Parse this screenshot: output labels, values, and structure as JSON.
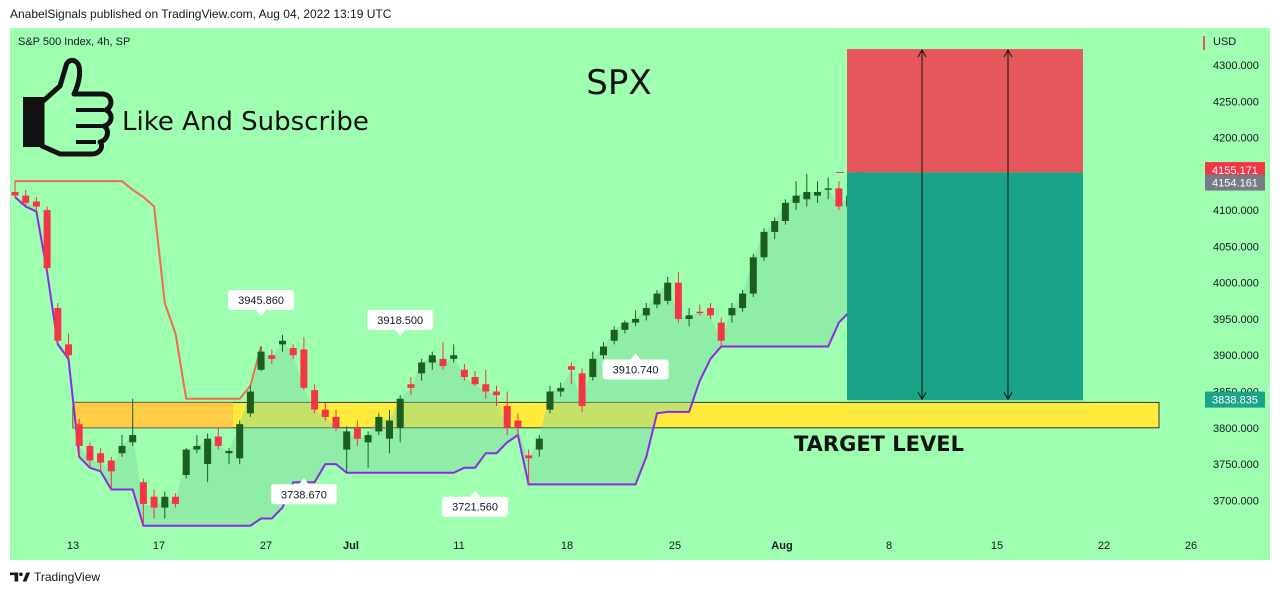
{
  "header": {
    "published_line": "AnabelSignals published on TradingView.com, Aug 04, 2022 13:19 UTC"
  },
  "chart_header": {
    "symbol_line": "S&P 500 Index, 4h, SP",
    "currency": "USD"
  },
  "overlay": {
    "title": "SPX",
    "cta_text": "Like And Subscribe",
    "target_label": "TARGET LEVEL"
  },
  "footer": {
    "brand": "TradingView"
  },
  "colors": {
    "background": "#9effb0",
    "bull_candle": "#1b5e20",
    "bear_candle": "#f23645",
    "target_zone": "#ffeb3b",
    "stop_zone": "#e5575a",
    "profit_zone": "#1aa386",
    "upper_band": "#f06a50",
    "lower_band": "#8a2be2"
  },
  "chart_data": {
    "type": "candlestick",
    "ylim": [
      3655,
      4340
    ],
    "y_ticks": [
      "4300.000",
      "4250.000",
      "4200.000",
      "4150.000",
      "4100.000",
      "4050.000",
      "4000.000",
      "3950.000",
      "3900.000",
      "3850.000",
      "3800.000",
      "3750.000",
      "3700.000"
    ],
    "y_tick_values": [
      4300,
      4250,
      4200,
      4150,
      4100,
      4050,
      4000,
      3950,
      3900,
      3850,
      3800,
      3750,
      3700
    ],
    "x_ticks": [
      "13",
      "17",
      "27",
      "Jul",
      "11",
      "18",
      "25",
      "Aug",
      "8",
      "15",
      "22",
      "26"
    ],
    "price_tags": [
      {
        "label": "4155.171",
        "value": 4155.171,
        "color": "#f23645"
      },
      {
        "label": "4154.161",
        "value": 4138,
        "color": "#787b86"
      },
      {
        "label": "3838.835",
        "value": 3838.835,
        "color": "#1aa386"
      }
    ],
    "annotations": [
      {
        "label": "3945.860",
        "value": 3945.86,
        "index": 23,
        "position": "above"
      },
      {
        "label": "3918.500",
        "value": 3918.5,
        "index": 36,
        "position": "above"
      },
      {
        "label": "3910.740",
        "value": 3910.74,
        "index": 58,
        "position": "below"
      },
      {
        "label": "3738.670",
        "value": 3738.67,
        "index": 27,
        "position": "below"
      },
      {
        "label": "3721.560",
        "value": 3721.56,
        "index": 43,
        "position": "below"
      }
    ],
    "target_zone": {
      "low": 3800,
      "high": 3835
    },
    "position_box": {
      "entry": 4152,
      "stop": 4322,
      "target": 3838
    },
    "candles": [
      [
        4125,
        4140,
        4118,
        4120
      ],
      [
        4120,
        4128,
        4105,
        4110
      ],
      [
        4112,
        4118,
        4098,
        4105
      ],
      [
        4100,
        4105,
        4015,
        4020
      ],
      [
        3965,
        3972,
        3915,
        3920
      ],
      [
        3915,
        3930,
        3895,
        3900
      ],
      [
        3805,
        3812,
        3760,
        3775
      ],
      [
        3775,
        3780,
        3745,
        3755
      ],
      [
        3765,
        3772,
        3740,
        3752
      ],
      [
        3755,
        3760,
        3715,
        3740
      ],
      [
        3765,
        3790,
        3760,
        3775
      ],
      [
        3780,
        3840,
        3775,
        3790
      ],
      [
        3725,
        3730,
        3665,
        3695
      ],
      [
        3705,
        3715,
        3675,
        3690
      ],
      [
        3690,
        3712,
        3675,
        3705
      ],
      [
        3705,
        3710,
        3690,
        3695
      ],
      [
        3735,
        3772,
        3730,
        3770
      ],
      [
        3770,
        3790,
        3765,
        3775
      ],
      [
        3750,
        3792,
        3725,
        3785
      ],
      [
        3788,
        3800,
        3770,
        3775
      ],
      [
        3765,
        3772,
        3750,
        3768
      ],
      [
        3758,
        3810,
        3750,
        3805
      ],
      [
        3820,
        3858,
        3815,
        3850
      ],
      [
        3880,
        3912,
        3878,
        3905
      ],
      [
        3900,
        3908,
        3888,
        3895
      ],
      [
        3915,
        3928,
        3905,
        3920
      ],
      [
        3910,
        3915,
        3895,
        3900
      ],
      [
        3908,
        3925,
        3852,
        3855
      ],
      [
        3852,
        3860,
        3820,
        3825
      ],
      [
        3825,
        3835,
        3810,
        3815
      ],
      [
        3815,
        3825,
        3795,
        3800
      ],
      [
        3770,
        3802,
        3738,
        3795
      ],
      [
        3800,
        3810,
        3775,
        3785
      ],
      [
        3780,
        3795,
        3745,
        3790
      ],
      [
        3795,
        3820,
        3790,
        3815
      ],
      [
        3785,
        3825,
        3765,
        3810
      ],
      [
        3800,
        3845,
        3780,
        3840
      ],
      [
        3860,
        3870,
        3845,
        3855
      ],
      [
        3875,
        3895,
        3865,
        3890
      ],
      [
        3890,
        3905,
        3880,
        3900
      ],
      [
        3895,
        3918,
        3880,
        3885
      ],
      [
        3895,
        3915,
        3890,
        3900
      ],
      [
        3880,
        3888,
        3865,
        3870
      ],
      [
        3870,
        3878,
        3858,
        3860
      ],
      [
        3860,
        3880,
        3840,
        3850
      ],
      [
        3850,
        3858,
        3830,
        3845
      ],
      [
        3830,
        3850,
        3790,
        3800
      ],
      [
        3810,
        3820,
        3790,
        3800
      ],
      [
        3762,
        3770,
        3722,
        3758
      ],
      [
        3770,
        3790,
        3760,
        3785
      ],
      [
        3825,
        3858,
        3820,
        3850
      ],
      [
        3850,
        3862,
        3843,
        3855
      ],
      [
        3885,
        3890,
        3860,
        3880
      ],
      [
        3875,
        3882,
        3822,
        3830
      ],
      [
        3870,
        3905,
        3865,
        3895
      ],
      [
        3900,
        3918,
        3895,
        3912
      ],
      [
        3920,
        3940,
        3915,
        3935
      ],
      [
        3935,
        3948,
        3930,
        3945
      ],
      [
        3945,
        3962,
        3940,
        3950
      ],
      [
        3955,
        3972,
        3948,
        3965
      ],
      [
        3970,
        3990,
        3965,
        3985
      ],
      [
        3975,
        4008,
        3970,
        4000
      ],
      [
        4000,
        4015,
        3945,
        3950
      ],
      [
        3950,
        3965,
        3940,
        3955
      ],
      [
        3960,
        3970,
        3955,
        3958
      ],
      [
        3965,
        3972,
        3950,
        3955
      ],
      [
        3945,
        3952,
        3912,
        3920
      ],
      [
        3955,
        3972,
        3945,
        3965
      ],
      [
        3965,
        3990,
        3960,
        3985
      ],
      [
        3985,
        4040,
        3980,
        4035
      ],
      [
        4035,
        4075,
        4030,
        4070
      ],
      [
        4070,
        4090,
        4060,
        4085
      ],
      [
        4085,
        4115,
        4080,
        4110
      ],
      [
        4110,
        4140,
        4100,
        4120
      ],
      [
        4115,
        4150,
        4105,
        4125
      ],
      [
        4120,
        4140,
        4110,
        4125
      ],
      [
        4128,
        4145,
        4115,
        4130
      ],
      [
        4130,
        4140,
        4100,
        4105
      ],
      [
        4105,
        4130,
        4095,
        4120
      ],
      [
        4120,
        4160,
        4110,
        4155
      ]
    ]
  }
}
